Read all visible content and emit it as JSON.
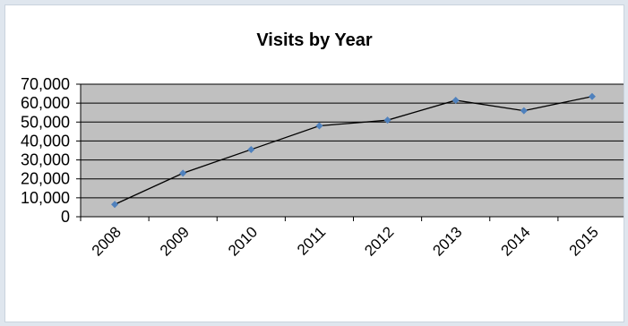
{
  "chart_data": {
    "type": "line",
    "title": "Visits by Year",
    "xlabel": "",
    "ylabel": "",
    "categories": [
      "2008",
      "2009",
      "2010",
      "2011",
      "2012",
      "2013",
      "2014",
      "2015"
    ],
    "series": [
      {
        "values": [
          6500,
          23000,
          35500,
          48000,
          51000,
          61500,
          56000,
          63500
        ]
      }
    ],
    "ylim": [
      0,
      70000
    ],
    "yticks": [
      "0",
      "10,000",
      "20,000",
      "30,000",
      "40,000",
      "50,000",
      "60,000",
      "70,000"
    ],
    "grid": true,
    "legend": "none",
    "colors": {
      "plot_background": "#c0c0c0",
      "line": "#000000",
      "marker": "#4f81bd",
      "gridline": "#000000"
    }
  }
}
